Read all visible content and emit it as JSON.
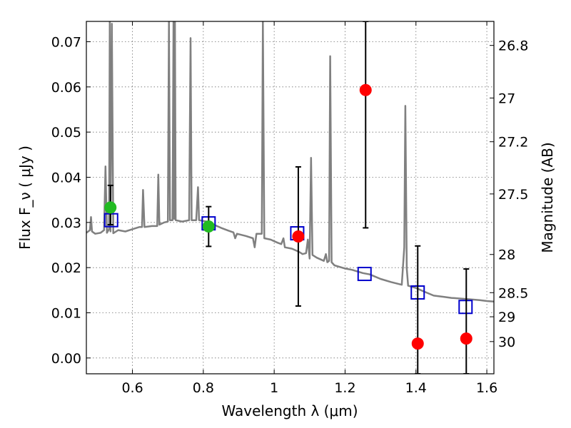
{
  "chart_data": {
    "type": "scatter",
    "xlabel": "Wavelength λ (μm)",
    "ylabel": "Flux F_ν ( μJy )",
    "ylabel_right": "Magnitude (AB)",
    "xlim": [
      0.47,
      1.62
    ],
    "ylim": [
      -0.0035,
      0.0745
    ],
    "x_ticks": [
      0.6,
      0.8,
      1.0,
      1.2,
      1.4,
      1.6
    ],
    "x_tick_labels": [
      "0.6",
      "0.8",
      "1",
      "1.2",
      "1.4",
      "1.6"
    ],
    "y_ticks": [
      0.0,
      0.01,
      0.02,
      0.03,
      0.04,
      0.05,
      0.06,
      0.07
    ],
    "y_tick_labels": [
      "0.00",
      "0.01",
      "0.02",
      "0.03",
      "0.04",
      "0.05",
      "0.06",
      "0.07"
    ],
    "right_ticks": [
      {
        "label": "26.8",
        "value": 26.8
      },
      {
        "label": "27",
        "value": 27.0
      },
      {
        "label": "27.2",
        "value": 27.2
      },
      {
        "label": "27.5",
        "value": 27.5
      },
      {
        "label": "28",
        "value": 28.0
      },
      {
        "label": "28.5",
        "value": 28.5
      },
      {
        "label": "29",
        "value": 29.0
      },
      {
        "label": "30",
        "value": 30.0
      }
    ],
    "grid": true,
    "series": [
      {
        "kind": "spectrum-line",
        "color": "#808080",
        "points": [
          [
            0.47,
            0.0277
          ],
          [
            0.48,
            0.0283
          ],
          [
            0.483,
            0.0312
          ],
          [
            0.486,
            0.028
          ],
          [
            0.495,
            0.0275
          ],
          [
            0.51,
            0.0277
          ],
          [
            0.52,
            0.0283
          ],
          [
            0.524,
            0.0424
          ],
          [
            0.528,
            0.0277
          ],
          [
            0.534,
            0.0285
          ],
          [
            0.536,
            0.0745
          ],
          [
            0.538,
            0.028
          ],
          [
            0.542,
            0.074
          ],
          [
            0.546,
            0.0276
          ],
          [
            0.56,
            0.0283
          ],
          [
            0.58,
            0.028
          ],
          [
            0.6,
            0.0285
          ],
          [
            0.62,
            0.029
          ],
          [
            0.627,
            0.029
          ],
          [
            0.63,
            0.0372
          ],
          [
            0.634,
            0.029
          ],
          [
            0.655,
            0.0292
          ],
          [
            0.67,
            0.0292
          ],
          [
            0.673,
            0.0406
          ],
          [
            0.676,
            0.0295
          ],
          [
            0.69,
            0.03
          ],
          [
            0.7,
            0.0302
          ],
          [
            0.703,
            0.0745
          ],
          [
            0.706,
            0.0305
          ],
          [
            0.713,
            0.0305
          ],
          [
            0.716,
            0.0745
          ],
          [
            0.718,
            0.0308
          ],
          [
            0.72,
            0.0745
          ],
          [
            0.722,
            0.0305
          ],
          [
            0.74,
            0.0302
          ],
          [
            0.76,
            0.0305
          ],
          [
            0.764,
            0.0708
          ],
          [
            0.767,
            0.0305
          ],
          [
            0.78,
            0.0305
          ],
          [
            0.785,
            0.0378
          ],
          [
            0.788,
            0.0305
          ],
          [
            0.81,
            0.0302
          ],
          [
            0.83,
            0.0295
          ],
          [
            0.85,
            0.0288
          ],
          [
            0.87,
            0.0282
          ],
          [
            0.885,
            0.0278
          ],
          [
            0.89,
            0.0265
          ],
          [
            0.895,
            0.0275
          ],
          [
            0.92,
            0.027
          ],
          [
            0.94,
            0.0265
          ],
          [
            0.945,
            0.0245
          ],
          [
            0.95,
            0.0275
          ],
          [
            0.96,
            0.0275
          ],
          [
            0.965,
            0.0275
          ],
          [
            0.968,
            0.0745
          ],
          [
            0.972,
            0.0265
          ],
          [
            0.99,
            0.0262
          ],
          [
            1.01,
            0.0255
          ],
          [
            1.02,
            0.0252
          ],
          [
            1.026,
            0.0265
          ],
          [
            1.03,
            0.0245
          ],
          [
            1.05,
            0.0242
          ],
          [
            1.07,
            0.0235
          ],
          [
            1.08,
            0.023
          ],
          [
            1.09,
            0.0232
          ],
          [
            1.095,
            0.0262
          ],
          [
            1.1,
            0.022
          ],
          [
            1.104,
            0.0443
          ],
          [
            1.108,
            0.0228
          ],
          [
            1.12,
            0.0222
          ],
          [
            1.14,
            0.0215
          ],
          [
            1.146,
            0.023
          ],
          [
            1.15,
            0.0212
          ],
          [
            1.155,
            0.0215
          ],
          [
            1.158,
            0.0668
          ],
          [
            1.162,
            0.0212
          ],
          [
            1.17,
            0.0205
          ],
          [
            1.2,
            0.0198
          ],
          [
            1.22,
            0.0195
          ],
          [
            1.25,
            0.0188
          ],
          [
            1.27,
            0.0185
          ],
          [
            1.3,
            0.0175
          ],
          [
            1.33,
            0.0168
          ],
          [
            1.36,
            0.0162
          ],
          [
            1.367,
            0.0245
          ],
          [
            1.37,
            0.0558
          ],
          [
            1.374,
            0.0198
          ],
          [
            1.378,
            0.016
          ],
          [
            1.4,
            0.0155
          ],
          [
            1.42,
            0.0148
          ],
          [
            1.45,
            0.0138
          ],
          [
            1.48,
            0.0135
          ],
          [
            1.5,
            0.0133
          ],
          [
            1.55,
            0.013
          ],
          [
            1.58,
            0.0128
          ],
          [
            1.6,
            0.0126
          ],
          [
            1.62,
            0.0125
          ]
        ]
      },
      {
        "kind": "open-square",
        "color": "#0000cc",
        "points": [
          [
            0.54,
            0.0305
          ],
          [
            0.815,
            0.0298
          ],
          [
            1.065,
            0.0276
          ],
          [
            1.255,
            0.0186
          ],
          [
            1.405,
            0.0145
          ],
          [
            1.54,
            0.0113
          ]
        ]
      },
      {
        "kind": "filled-circle",
        "color": "#ff0000",
        "points": [
          {
            "x": 1.068,
            "y": 0.0269,
            "err_low": 0.0115,
            "err_high": 0.0423
          },
          {
            "x": 1.258,
            "y": 0.0593,
            "err_low": 0.0288,
            "err_high": 0.0745
          },
          {
            "x": 1.405,
            "y": 0.0032,
            "err_low": -0.0035,
            "err_high": 0.0248
          },
          {
            "x": 1.542,
            "y": 0.0043,
            "err_low": -0.0035,
            "err_high": 0.0197
          }
        ]
      },
      {
        "kind": "filled-circle",
        "color": "#22bb22",
        "points": [
          {
            "x": 0.538,
            "y": 0.0333,
            "err_low": 0.0295,
            "err_high": 0.0382
          },
          {
            "x": 0.815,
            "y": 0.0291,
            "err_low": 0.0247,
            "err_high": 0.0335
          }
        ]
      }
    ]
  }
}
